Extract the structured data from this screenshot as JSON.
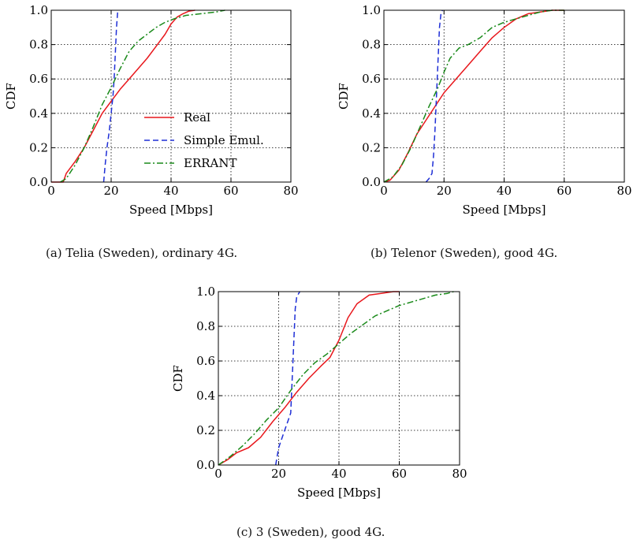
{
  "captions": {
    "a": "(a) Telia (Sweden), ordinary 4G.",
    "b": "(b) Telenor (Sweden), good 4G.",
    "c": "(c) 3 (Sweden), good 4G."
  },
  "colors": {
    "real": "#e8171c",
    "simple": "#1f2fd6",
    "errant": "#1a8a1a"
  },
  "chart_data": [
    {
      "type": "line",
      "xlabel": "Speed [Mbps]",
      "ylabel": "CDF",
      "xlim": [
        0,
        80
      ],
      "ylim": [
        0,
        1
      ],
      "xticks": [
        "0",
        "20",
        "40",
        "60",
        "80"
      ],
      "yticks": [
        "0.0",
        "0.2",
        "0.4",
        "0.6",
        "0.8",
        "1.0"
      ],
      "grid": true,
      "legend": {
        "placement": "bottom-right",
        "entries": [
          "Real",
          "Simple Emul.",
          "ERRANT"
        ]
      },
      "series": [
        {
          "name": "Real",
          "x": [
            0,
            4,
            5,
            8,
            11,
            14,
            17,
            20,
            23,
            26,
            29,
            32,
            35,
            38,
            40,
            42,
            44,
            46,
            48
          ],
          "y": [
            0,
            0,
            0.05,
            0.12,
            0.2,
            0.3,
            0.4,
            0.47,
            0.54,
            0.6,
            0.66,
            0.72,
            0.79,
            0.86,
            0.92,
            0.96,
            0.98,
            0.995,
            1.0
          ]
        },
        {
          "name": "Simple Emul.",
          "x": [
            17.5,
            18,
            18.6,
            19.4,
            20,
            20.6,
            21,
            21.4,
            21.8,
            22.2
          ],
          "y": [
            0,
            0.1,
            0.2,
            0.3,
            0.4,
            0.5,
            0.6,
            0.75,
            0.9,
            1.0
          ]
        },
        {
          "name": "ERRANT",
          "x": [
            3,
            5,
            8,
            11,
            14,
            17,
            20,
            23,
            26,
            29,
            32,
            35,
            38,
            41,
            45,
            50,
            55,
            58
          ],
          "y": [
            0,
            0.02,
            0.1,
            0.2,
            0.32,
            0.45,
            0.55,
            0.66,
            0.76,
            0.82,
            0.86,
            0.9,
            0.93,
            0.95,
            0.97,
            0.98,
            0.99,
            1.0
          ]
        }
      ]
    },
    {
      "type": "line",
      "xlabel": "Speed [Mbps]",
      "ylabel": "CDF",
      "xlim": [
        0,
        80
      ],
      "ylim": [
        0,
        1
      ],
      "xticks": [
        "0",
        "20",
        "40",
        "60",
        "80"
      ],
      "yticks": [
        "0.0",
        "0.2",
        "0.4",
        "0.6",
        "0.8",
        "1.0"
      ],
      "grid": true,
      "series": [
        {
          "name": "Real",
          "x": [
            0,
            2,
            5,
            8,
            11,
            14,
            17,
            20,
            24,
            28,
            32,
            36,
            40,
            44,
            48,
            52,
            56,
            60
          ],
          "y": [
            0,
            0.01,
            0.07,
            0.17,
            0.28,
            0.36,
            0.44,
            0.52,
            0.6,
            0.68,
            0.76,
            0.84,
            0.9,
            0.95,
            0.98,
            0.99,
            1.0,
            1.0
          ]
        },
        {
          "name": "Simple Emul.",
          "x": [
            14,
            15,
            16,
            16.5,
            17,
            17.5,
            18,
            18.5,
            19,
            19.5
          ],
          "y": [
            0,
            0.02,
            0.05,
            0.15,
            0.3,
            0.5,
            0.7,
            0.9,
            0.98,
            1.0
          ]
        },
        {
          "name": "ERRANT",
          "x": [
            0,
            3,
            6,
            9,
            12,
            15,
            18,
            20,
            22,
            25,
            28,
            32,
            36,
            40,
            44,
            48,
            52,
            56,
            60
          ],
          "y": [
            0,
            0.03,
            0.1,
            0.2,
            0.32,
            0.44,
            0.55,
            0.64,
            0.72,
            0.78,
            0.8,
            0.84,
            0.9,
            0.93,
            0.95,
            0.97,
            0.99,
            1.0,
            1.0
          ]
        }
      ]
    },
    {
      "type": "line",
      "xlabel": "Speed [Mbps]",
      "ylabel": "CDF",
      "xlim": [
        0,
        80
      ],
      "ylim": [
        0,
        1
      ],
      "xticks": [
        "0",
        "20",
        "40",
        "60",
        "80"
      ],
      "yticks": [
        "0.0",
        "0.2",
        "0.4",
        "0.6",
        "0.8",
        "1.0"
      ],
      "grid": true,
      "series": [
        {
          "name": "Real",
          "x": [
            0,
            3,
            6,
            10,
            14,
            18,
            22,
            26,
            30,
            34,
            37,
            40,
            43,
            46,
            50,
            54,
            58,
            60
          ],
          "y": [
            0,
            0.03,
            0.07,
            0.1,
            0.16,
            0.25,
            0.33,
            0.42,
            0.5,
            0.57,
            0.62,
            0.72,
            0.85,
            0.93,
            0.98,
            0.99,
            1.0,
            1.0
          ]
        },
        {
          "name": "Simple Emul.",
          "x": [
            19,
            19.5,
            20,
            21,
            22,
            23,
            24,
            24.5,
            25,
            25.5,
            26,
            27
          ],
          "y": [
            0,
            0.05,
            0.1,
            0.15,
            0.2,
            0.25,
            0.3,
            0.5,
            0.7,
            0.9,
            0.97,
            1.0
          ]
        },
        {
          "name": "ERRANT",
          "x": [
            0,
            4,
            8,
            12,
            16,
            20,
            24,
            28,
            32,
            36,
            40,
            44,
            48,
            52,
            56,
            60,
            64,
            68,
            72,
            76,
            78
          ],
          "y": [
            0,
            0.05,
            0.11,
            0.18,
            0.26,
            0.33,
            0.43,
            0.52,
            0.59,
            0.64,
            0.7,
            0.76,
            0.81,
            0.86,
            0.89,
            0.92,
            0.94,
            0.96,
            0.98,
            0.99,
            1.0
          ]
        }
      ]
    }
  ]
}
